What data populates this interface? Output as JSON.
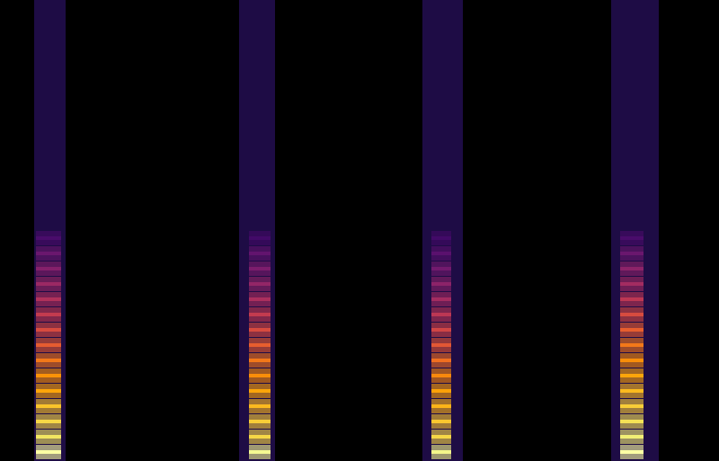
{
  "chart_data": {
    "type": "spectrogram",
    "xlim": [
      0,
      800
    ],
    "ylim": [
      0,
      513
    ],
    "color_range": [
      0,
      1
    ],
    "tick_labels": false,
    "grid": false,
    "bursts": [
      {
        "start": 38,
        "end": 73,
        "energy_start": 40,
        "energy_end": 68,
        "floor": 0.12,
        "harmonics": [
          {
            "freq": 10,
            "level": 1.0
          },
          {
            "freq": 27,
            "level": 0.93
          },
          {
            "freq": 44,
            "level": 0.9
          },
          {
            "freq": 61,
            "level": 0.86
          },
          {
            "freq": 78,
            "level": 0.8
          },
          {
            "freq": 95,
            "level": 0.76
          },
          {
            "freq": 112,
            "level": 0.7
          },
          {
            "freq": 129,
            "level": 0.63
          },
          {
            "freq": 146,
            "level": 0.58
          },
          {
            "freq": 163,
            "level": 0.52
          },
          {
            "freq": 180,
            "level": 0.47
          },
          {
            "freq": 197,
            "level": 0.42
          },
          {
            "freq": 214,
            "level": 0.36
          },
          {
            "freq": 231,
            "level": 0.3
          },
          {
            "freq": 248,
            "level": 0.22
          }
        ]
      },
      {
        "start": 266,
        "end": 306,
        "energy_start": 277,
        "energy_end": 301,
        "floor": 0.12,
        "harmonics": [
          {
            "freq": 10,
            "level": 0.98
          },
          {
            "freq": 27,
            "level": 0.9
          },
          {
            "freq": 44,
            "level": 0.88
          },
          {
            "freq": 61,
            "level": 0.84
          },
          {
            "freq": 78,
            "level": 0.8
          },
          {
            "freq": 95,
            "level": 0.75
          },
          {
            "freq": 112,
            "level": 0.7
          },
          {
            "freq": 129,
            "level": 0.64
          },
          {
            "freq": 146,
            "level": 0.58
          },
          {
            "freq": 163,
            "level": 0.52
          },
          {
            "freq": 180,
            "level": 0.46
          },
          {
            "freq": 197,
            "level": 0.4
          },
          {
            "freq": 214,
            "level": 0.34
          },
          {
            "freq": 231,
            "level": 0.28
          },
          {
            "freq": 248,
            "level": 0.2
          }
        ]
      },
      {
        "start": 470,
        "end": 515,
        "energy_start": 480,
        "energy_end": 502,
        "floor": 0.12,
        "harmonics": [
          {
            "freq": 10,
            "level": 0.97
          },
          {
            "freq": 27,
            "level": 0.9
          },
          {
            "freq": 44,
            "level": 0.87
          },
          {
            "freq": 61,
            "level": 0.83
          },
          {
            "freq": 78,
            "level": 0.79
          },
          {
            "freq": 95,
            "level": 0.74
          },
          {
            "freq": 112,
            "level": 0.68
          },
          {
            "freq": 129,
            "level": 0.62
          },
          {
            "freq": 146,
            "level": 0.56
          },
          {
            "freq": 163,
            "level": 0.5
          },
          {
            "freq": 180,
            "level": 0.44
          },
          {
            "freq": 197,
            "level": 0.38
          },
          {
            "freq": 214,
            "level": 0.32
          },
          {
            "freq": 231,
            "level": 0.26
          },
          {
            "freq": 248,
            "level": 0.2
          }
        ]
      },
      {
        "start": 680,
        "end": 733,
        "energy_start": 690,
        "energy_end": 716,
        "floor": 0.12,
        "harmonics": [
          {
            "freq": 10,
            "level": 1.0
          },
          {
            "freq": 27,
            "level": 0.95
          },
          {
            "freq": 44,
            "level": 0.92
          },
          {
            "freq": 61,
            "level": 0.88
          },
          {
            "freq": 78,
            "level": 0.84
          },
          {
            "freq": 95,
            "level": 0.8
          },
          {
            "freq": 112,
            "level": 0.75
          },
          {
            "freq": 129,
            "level": 0.7
          },
          {
            "freq": 146,
            "level": 0.64
          },
          {
            "freq": 163,
            "level": 0.58
          },
          {
            "freq": 180,
            "level": 0.5
          },
          {
            "freq": 197,
            "level": 0.44
          },
          {
            "freq": 214,
            "level": 0.38
          },
          {
            "freq": 231,
            "level": 0.3
          },
          {
            "freq": 248,
            "level": 0.22
          }
        ]
      }
    ]
  }
}
